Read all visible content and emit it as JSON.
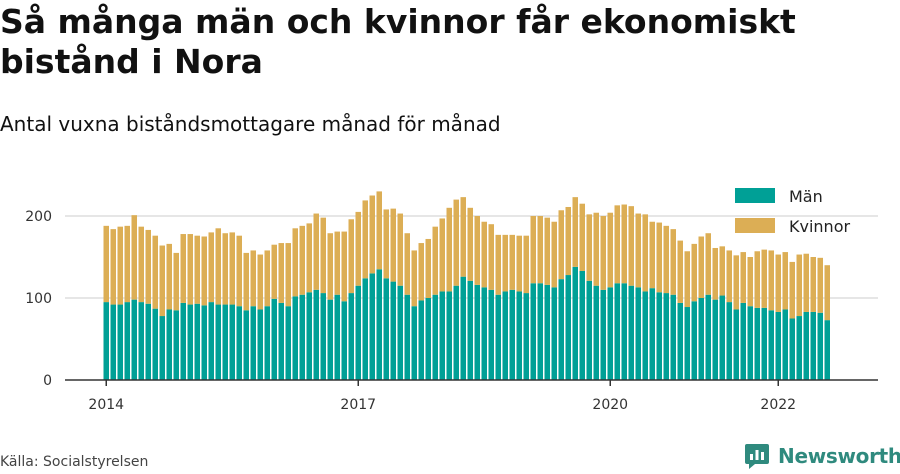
{
  "header": {
    "title": "Så många män och kvinnor får ekonomiskt bistånd i Nora",
    "subtitle": "Antal vuxna biståndsmottagare månad för månad"
  },
  "footer": {
    "source": "Källa: Socialstyrelsen",
    "brand": "Newsworthy"
  },
  "colors": {
    "men": "#00a096",
    "women": "#dcae55",
    "grid": "#dddddd",
    "axis": "#333333"
  },
  "chart_data": {
    "type": "bar",
    "stacked": true,
    "x_start": "2014-01",
    "x_tick_labels": [
      "2014",
      "2017",
      "2020",
      "2022"
    ],
    "y_tick_labels": [
      "0",
      "100",
      "200"
    ],
    "ylim": [
      0,
      230
    ],
    "grid": true,
    "legend_position": "top-right",
    "series": [
      {
        "name": "Män",
        "values": [
          95,
          92,
          92,
          95,
          98,
          95,
          93,
          87,
          78,
          86,
          85,
          94,
          92,
          93,
          91,
          95,
          92,
          92,
          92,
          90,
          85,
          90,
          86,
          90,
          99,
          94,
          90,
          102,
          104,
          107,
          110,
          106,
          98,
          104,
          96,
          106,
          115,
          124,
          130,
          135,
          124,
          120,
          115,
          104,
          90,
          97,
          100,
          104,
          108,
          108,
          115,
          126,
          121,
          116,
          113,
          110,
          104,
          108,
          110,
          108,
          106,
          118,
          118,
          116,
          113,
          123,
          128,
          138,
          133,
          121,
          115,
          110,
          113,
          118,
          118,
          115,
          113,
          108,
          112,
          107,
          106,
          104,
          94,
          89,
          96,
          100,
          104,
          98,
          103,
          95,
          86,
          94,
          90,
          88,
          88,
          85,
          83,
          86,
          75,
          78,
          83,
          83,
          82,
          73
        ]
      },
      {
        "name": "Kvinnor",
        "values": [
          93,
          92,
          95,
          93,
          103,
          92,
          90,
          89,
          86,
          80,
          70,
          84,
          86,
          83,
          84,
          85,
          93,
          87,
          88,
          86,
          70,
          68,
          67,
          68,
          66,
          73,
          77,
          83,
          84,
          84,
          93,
          92,
          81,
          77,
          85,
          90,
          90,
          95,
          95,
          95,
          84,
          89,
          88,
          75,
          68,
          70,
          72,
          83,
          89,
          102,
          105,
          97,
          89,
          84,
          80,
          80,
          73,
          69,
          67,
          68,
          70,
          82,
          82,
          82,
          80,
          84,
          83,
          85,
          82,
          81,
          89,
          90,
          91,
          95,
          96,
          97,
          90,
          94,
          81,
          85,
          82,
          80,
          76,
          68,
          70,
          75,
          75,
          63,
          60,
          63,
          66,
          62,
          60,
          69,
          71,
          73,
          70,
          70,
          69,
          75,
          71,
          67,
          67,
          67
        ]
      }
    ]
  }
}
